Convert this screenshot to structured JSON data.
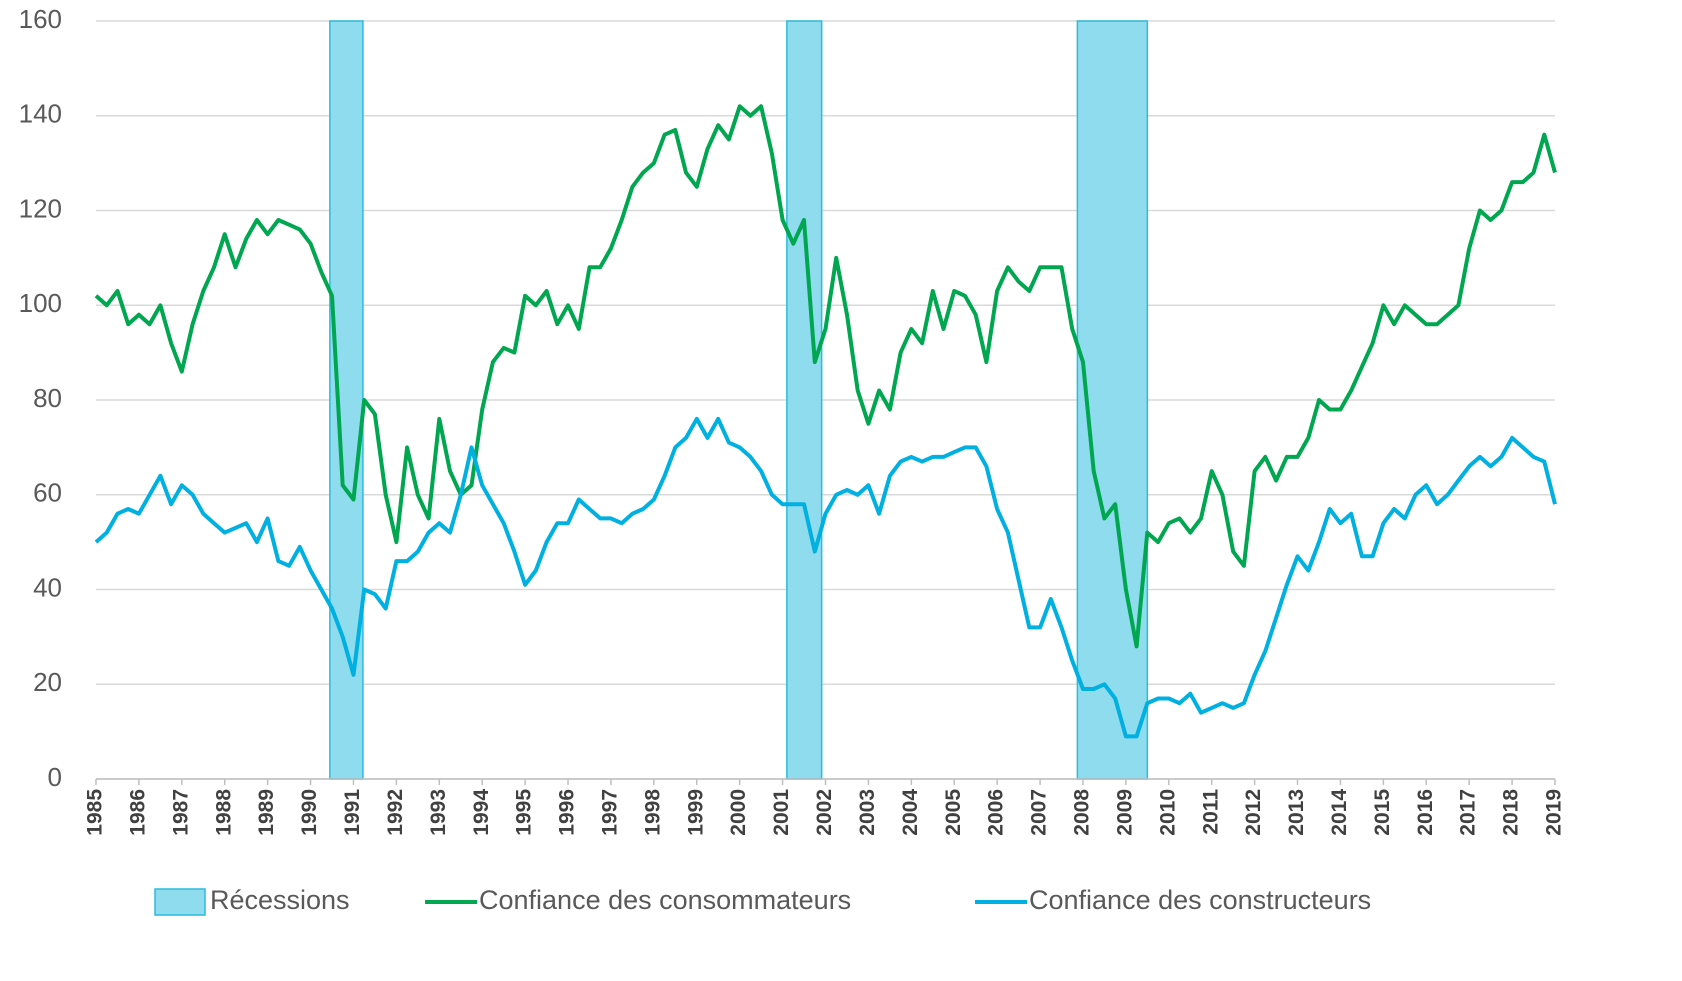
{
  "chart_data": {
    "type": "line",
    "x": [
      1985,
      1985.25,
      1985.5,
      1985.75,
      1986,
      1986.25,
      1986.5,
      1986.75,
      1987,
      1987.25,
      1987.5,
      1987.75,
      1988,
      1988.25,
      1988.5,
      1988.75,
      1989,
      1989.25,
      1989.5,
      1989.75,
      1990,
      1990.25,
      1990.5,
      1990.75,
      1991,
      1991.25,
      1991.5,
      1991.75,
      1992,
      1992.25,
      1992.5,
      1992.75,
      1993,
      1993.25,
      1993.5,
      1993.75,
      1994,
      1994.25,
      1994.5,
      1994.75,
      1995,
      1995.25,
      1995.5,
      1995.75,
      1996,
      1996.25,
      1996.5,
      1996.75,
      1997,
      1997.25,
      1997.5,
      1997.75,
      1998,
      1998.25,
      1998.5,
      1998.75,
      1999,
      1999.25,
      1999.5,
      1999.75,
      2000,
      2000.25,
      2000.5,
      2000.75,
      2001,
      2001.25,
      2001.5,
      2001.75,
      2002,
      2002.25,
      2002.5,
      2002.75,
      2003,
      2003.25,
      2003.5,
      2003.75,
      2004,
      2004.25,
      2004.5,
      2004.75,
      2005,
      2005.25,
      2005.5,
      2005.75,
      2006,
      2006.25,
      2006.5,
      2006.75,
      2007,
      2007.25,
      2007.5,
      2007.75,
      2008,
      2008.25,
      2008.5,
      2008.75,
      2009,
      2009.25,
      2009.5,
      2009.75,
      2010,
      2010.25,
      2010.5,
      2010.75,
      2011,
      2011.25,
      2011.5,
      2011.75,
      2012,
      2012.25,
      2012.5,
      2012.75,
      2013,
      2013.25,
      2013.5,
      2013.75,
      2014,
      2014.25,
      2014.5,
      2014.75,
      2015,
      2015.25,
      2015.5,
      2015.75,
      2016,
      2016.25,
      2016.5,
      2016.75,
      2017,
      2017.25,
      2017.5,
      2017.75,
      2018,
      2018.25,
      2018.5,
      2018.75,
      2019
    ],
    "series": [
      {
        "name": "Confiance des consommateurs",
        "color": "#00a650",
        "values": [
          102,
          100,
          103,
          96,
          98,
          96,
          100,
          92,
          86,
          96,
          103,
          108,
          115,
          108,
          114,
          118,
          115,
          118,
          117,
          116,
          113,
          107,
          102,
          62,
          59,
          80,
          77,
          60,
          50,
          70,
          60,
          55,
          76,
          65,
          60,
          62,
          78,
          88,
          91,
          90,
          102,
          100,
          103,
          96,
          100,
          95,
          108,
          108,
          112,
          118,
          125,
          128,
          130,
          136,
          137,
          128,
          125,
          133,
          138,
          135,
          142,
          140,
          142,
          132,
          118,
          113,
          118,
          88,
          95,
          110,
          98,
          82,
          75,
          82,
          78,
          90,
          95,
          92,
          103,
          95,
          103,
          102,
          98,
          88,
          103,
          108,
          105,
          103,
          108,
          108,
          108,
          95,
          88,
          65,
          55,
          58,
          40,
          28,
          52,
          50,
          54,
          55,
          52,
          55,
          65,
          60,
          48,
          45,
          65,
          68,
          63,
          68,
          68,
          72,
          80,
          78,
          78,
          82,
          87,
          92,
          100,
          96,
          100,
          98,
          96,
          96,
          98,
          100,
          112,
          120,
          118,
          120,
          126,
          126,
          128,
          136,
          128
        ]
      },
      {
        "name": "Confiance des constructeurs",
        "color": "#00b0e0",
        "values": [
          50,
          52,
          56,
          57,
          56,
          60,
          64,
          58,
          62,
          60,
          56,
          54,
          52,
          53,
          54,
          50,
          55,
          46,
          45,
          49,
          44,
          40,
          36,
          30,
          22,
          40,
          39,
          36,
          46,
          46,
          48,
          52,
          54,
          52,
          60,
          70,
          62,
          58,
          54,
          48,
          41,
          44,
          50,
          54,
          54,
          59,
          57,
          55,
          55,
          54,
          56,
          57,
          59,
          64,
          70,
          72,
          76,
          72,
          76,
          71,
          70,
          68,
          65,
          60,
          58,
          58,
          58,
          48,
          56,
          60,
          61,
          60,
          62,
          56,
          64,
          67,
          68,
          67,
          68,
          68,
          69,
          70,
          70,
          66,
          57,
          52,
          42,
          32,
          32,
          38,
          32,
          25,
          19,
          19,
          20,
          17,
          9,
          9,
          16,
          17,
          17,
          16,
          18,
          14,
          15,
          16,
          15,
          16,
          22,
          27,
          34,
          41,
          47,
          44,
          50,
          57,
          54,
          56,
          47,
          47,
          54,
          57,
          55,
          60,
          62,
          58,
          60,
          63,
          66,
          68,
          66,
          68,
          72,
          70,
          68,
          67,
          58
        ]
      }
    ],
    "recessions": {
      "name": "Récessions",
      "color": "#8fdcef",
      "periods": [
        [
          1990.45,
          1991.22
        ],
        [
          2001.1,
          2001.91
        ],
        [
          2007.87,
          2009.5
        ]
      ]
    },
    "xlim": [
      1985,
      2019
    ],
    "xticks": [
      1985,
      1986,
      1987,
      1988,
      1989,
      1990,
      1991,
      1992,
      1993,
      1994,
      1995,
      1996,
      1997,
      1998,
      1999,
      2000,
      2001,
      2002,
      2003,
      2004,
      2005,
      2006,
      2007,
      2008,
      2009,
      2010,
      2011,
      2012,
      2013,
      2014,
      2015,
      2016,
      2017,
      2018,
      2019
    ],
    "ylim": [
      0,
      160
    ],
    "yticks": [
      0,
      20,
      40,
      60,
      80,
      100,
      120,
      140,
      160
    ],
    "grid": true
  }
}
